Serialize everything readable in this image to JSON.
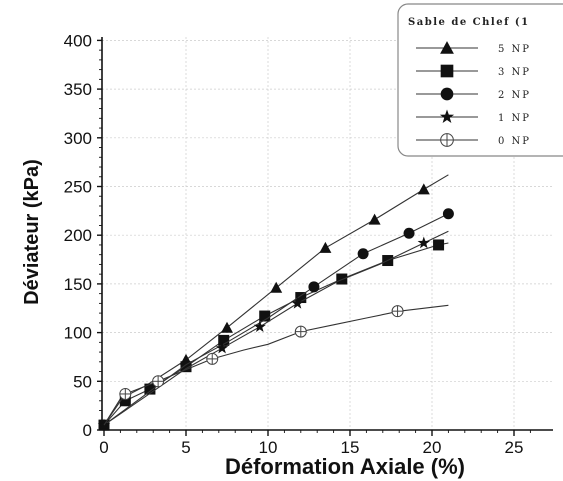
{
  "chart_data": {
    "type": "line",
    "title": "",
    "xlabel": "Déformation Axiale (%)",
    "ylabel": "Déviateur (kPa)",
    "xlim": [
      0,
      27
    ],
    "ylim": [
      0,
      400
    ],
    "xticks": [
      "0",
      "5",
      "10",
      "15",
      "20",
      "25"
    ],
    "yticks": [
      "0",
      "50",
      "100",
      "150",
      "200",
      "250",
      "300",
      "350",
      "400"
    ],
    "grid": true,
    "legend_title": "Sable de Chlef (1",
    "legend_position": "top-right",
    "series": [
      {
        "name": "5 NP",
        "marker": "triangle",
        "x": [
          0,
          1,
          2.5,
          5,
          7.5,
          10.5,
          13.5,
          16.5,
          19.5,
          21
        ],
        "y": [
          5,
          32,
          45,
          72,
          105,
          146,
          187,
          216,
          247,
          262
        ],
        "marker_x": [
          5,
          7.5,
          10.5,
          13.5,
          16.5,
          19.5
        ],
        "marker_y": [
          72,
          105,
          146,
          187,
          216,
          247
        ]
      },
      {
        "name": "3 NP",
        "marker": "square",
        "x": [
          0,
          1.3,
          2.8,
          5,
          7.3,
          9.8,
          12,
          14.5,
          17.3,
          20.4,
          21
        ],
        "y": [
          5,
          30,
          42,
          65,
          92,
          117,
          136,
          155,
          174,
          190,
          192
        ],
        "marker_x": [
          0,
          1.3,
          2.8,
          5,
          7.3,
          9.8,
          12,
          14.5,
          17.3,
          20.4
        ],
        "marker_y": [
          5,
          30,
          42,
          65,
          92,
          117,
          136,
          155,
          174,
          190
        ]
      },
      {
        "name": "2 NP",
        "marker": "circle",
        "x": [
          0,
          5,
          7.5,
          10,
          12.8,
          15.8,
          18.6,
          21
        ],
        "y": [
          5,
          67,
          90,
          115,
          147,
          181,
          202,
          222
        ],
        "marker_x": [
          12.8,
          15.8,
          18.6,
          21
        ],
        "marker_y": [
          147,
          181,
          202,
          222
        ]
      },
      {
        "name": "1 NP",
        "marker": "star",
        "x": [
          0,
          5,
          7.2,
          9.5,
          11.8,
          14.3,
          16.8,
          19.5,
          21
        ],
        "y": [
          5,
          63,
          84,
          106,
          130,
          153,
          170,
          192,
          204
        ],
        "marker_x": [
          0,
          7.2,
          9.5,
          11.8,
          19.5
        ],
        "marker_y": [
          5,
          84,
          106,
          130,
          192
        ]
      },
      {
        "name": "0 NP",
        "marker": "circle-cross",
        "x": [
          0,
          1.3,
          3.3,
          5,
          6.6,
          8.5,
          10,
          12,
          14,
          16,
          18,
          21
        ],
        "y": [
          5,
          37,
          50,
          62,
          73,
          82,
          88,
          101,
          108,
          115,
          122,
          128
        ],
        "marker_x": [
          1.3,
          3.3,
          6.6,
          12,
          17.9
        ],
        "marker_y": [
          37,
          50,
          73,
          101,
          122
        ]
      }
    ]
  },
  "colors": {
    "line": "#333333",
    "marker": "#111111",
    "grid": "#cccccc",
    "legend_border": "#888888"
  }
}
